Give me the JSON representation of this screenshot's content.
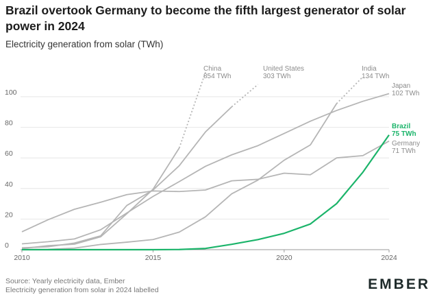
{
  "title": "Brazil overtook Germany to become the fifth largest generator of solar power in 2024",
  "subtitle": "Electricity generation from solar (TWh)",
  "footer": {
    "source": "Source: Yearly electricity data, Ember",
    "note": "Electricity generation from solar in 2024 labelled"
  },
  "logo": "EMBER",
  "colors": {
    "grey": "#b5b5b5",
    "highlight": "#1bb46a",
    "label_grey": "#8c8c8c"
  },
  "chart_data": {
    "type": "line",
    "title": "Brazil overtook Germany to become the fifth largest generator of solar power in 2024",
    "ylabel": "Electricity generation from solar (TWh)",
    "xlabel": "",
    "xlim": [
      2010,
      2024
    ],
    "ylim": [
      0,
      100
    ],
    "x_ticks": [
      2010,
      2015,
      2020,
      2024
    ],
    "y_ticks": [
      0,
      20,
      40,
      60,
      80,
      100
    ],
    "series": [
      {
        "name": "China",
        "value_label": "854 TWh",
        "highlight": false,
        "dotted_tail": true,
        "x": [
          2010,
          2011,
          2012,
          2013,
          2014,
          2015,
          2016,
          2017
        ],
        "values": [
          0.7,
          2.6,
          3.6,
          8.4,
          23.5,
          39.5,
          66.5,
          116
        ]
      },
      {
        "name": "United States",
        "value_label": "303 TWh",
        "highlight": false,
        "dotted_tail": true,
        "x": [
          2010,
          2011,
          2012,
          2013,
          2014,
          2015,
          2016,
          2017,
          2018,
          2019
        ],
        "values": [
          1.2,
          1.9,
          4.3,
          9.0,
          28.9,
          39.0,
          54.9,
          77.0,
          93.4,
          108
        ]
      },
      {
        "name": "India",
        "value_label": "134 TWh",
        "highlight": false,
        "dotted_tail": true,
        "x": [
          2010,
          2011,
          2012,
          2013,
          2014,
          2015,
          2016,
          2017,
          2018,
          2019,
          2020,
          2021,
          2022,
          2023
        ],
        "values": [
          0.1,
          0.2,
          1.0,
          3.4,
          4.9,
          6.6,
          11.5,
          21.5,
          36.5,
          45.5,
          58.5,
          68.5,
          95.5,
          113
        ]
      },
      {
        "name": "Japan",
        "value_label": "102 TWh",
        "highlight": false,
        "dotted_tail": false,
        "x": [
          2010,
          2011,
          2012,
          2013,
          2014,
          2015,
          2016,
          2017,
          2018,
          2019,
          2020,
          2021,
          2022,
          2023,
          2024
        ],
        "values": [
          3.8,
          5.2,
          7.0,
          13.0,
          24.0,
          34.8,
          44.5,
          54.5,
          62.0,
          68.0,
          76.0,
          84.0,
          91.0,
          97.0,
          102
        ]
      },
      {
        "name": "Germany",
        "value_label": "71 TWh",
        "highlight": false,
        "dotted_tail": false,
        "x": [
          2010,
          2011,
          2012,
          2013,
          2014,
          2015,
          2016,
          2017,
          2018,
          2019,
          2020,
          2021,
          2022,
          2023,
          2024
        ],
        "values": [
          11.7,
          19.6,
          26.4,
          31.0,
          36.0,
          38.4,
          38.0,
          39.0,
          45.0,
          46.0,
          50.0,
          49.0,
          60.0,
          61.5,
          71
        ]
      },
      {
        "name": "Brazil",
        "value_label": "75 TWh",
        "highlight": true,
        "dotted_tail": false,
        "x": [
          2010,
          2011,
          2012,
          2013,
          2014,
          2015,
          2016,
          2017,
          2018,
          2019,
          2020,
          2021,
          2022,
          2023,
          2024
        ],
        "values": [
          0.0,
          0.0,
          0.0,
          0.0,
          0.0,
          0.0,
          0.1,
          0.8,
          3.5,
          6.6,
          10.7,
          16.8,
          30.1,
          50.6,
          75
        ]
      }
    ]
  }
}
